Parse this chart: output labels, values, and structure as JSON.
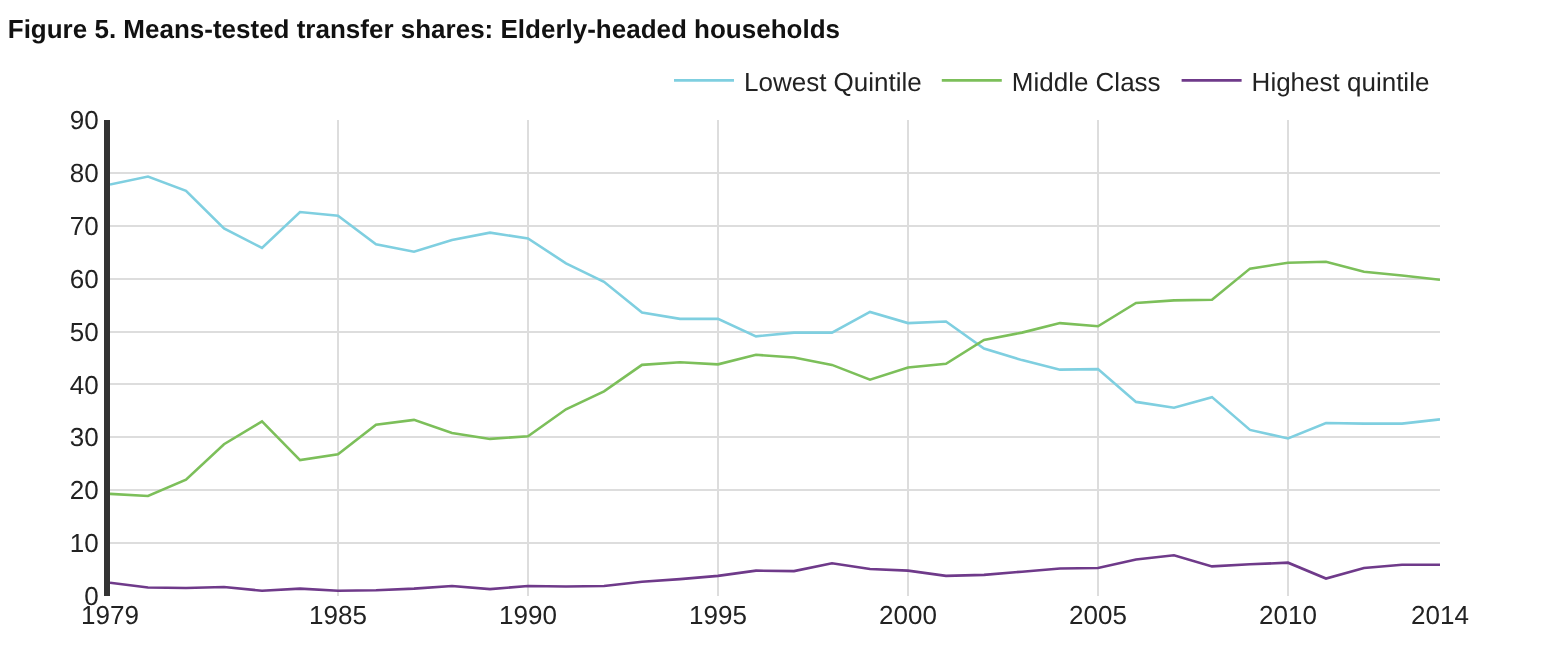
{
  "chart_data": {
    "type": "line",
    "title": "Figure 5. Means-tested transfer shares: Elderly-headed households",
    "x": [
      1979,
      1980,
      1981,
      1982,
      1983,
      1984,
      1985,
      1986,
      1987,
      1988,
      1989,
      1990,
      1991,
      1992,
      1993,
      1994,
      1995,
      1996,
      1997,
      1998,
      1999,
      2000,
      2001,
      2002,
      2003,
      2004,
      2005,
      2006,
      2007,
      2008,
      2009,
      2010,
      2011,
      2012,
      2013,
      2014
    ],
    "series": [
      {
        "name": "Lowest Quintile",
        "color": "#7fcfe0",
        "values": [
          77.8,
          79.3,
          76.6,
          69.5,
          65.8,
          72.6,
          71.9,
          66.5,
          65.1,
          67.3,
          68.7,
          67.6,
          62.9,
          59.4,
          53.6,
          52.4,
          52.4,
          49.1,
          49.8,
          49.8,
          53.7,
          51.6,
          51.9,
          46.8,
          44.6,
          42.8,
          42.9,
          36.7,
          35.6,
          37.6,
          31.4,
          29.8,
          32.7,
          32.6,
          32.6,
          33.4
        ]
      },
      {
        "name": "Middle Class",
        "color": "#7cbf5a",
        "values": [
          19.3,
          18.9,
          22.0,
          28.7,
          33.0,
          25.7,
          26.8,
          32.4,
          33.3,
          30.8,
          29.7,
          30.2,
          35.3,
          38.7,
          43.7,
          44.2,
          43.8,
          45.6,
          45.1,
          43.7,
          40.9,
          43.2,
          43.9,
          48.4,
          49.8,
          51.6,
          51.0,
          55.4,
          55.9,
          56.0,
          61.9,
          63.0,
          63.2,
          61.3,
          60.6,
          59.8
        ]
      },
      {
        "name": "Highest quintile",
        "color": "#6f3a8a",
        "values": [
          2.5,
          1.6,
          1.5,
          1.7,
          1.0,
          1.4,
          1.0,
          1.1,
          1.4,
          1.9,
          1.3,
          1.9,
          1.8,
          1.9,
          2.7,
          3.2,
          3.8,
          4.8,
          4.7,
          6.2,
          5.1,
          4.8,
          3.8,
          4.0,
          4.6,
          5.2,
          5.3,
          6.9,
          7.7,
          5.6,
          6.0,
          6.3,
          3.3,
          5.3,
          5.9,
          5.9
        ]
      }
    ],
    "xlim": [
      1979,
      2014
    ],
    "xticks": [
      1979,
      1985,
      1990,
      1995,
      2000,
      2005,
      2010,
      2014
    ],
    "ylim": [
      0,
      90
    ],
    "yticks": [
      0,
      10,
      20,
      30,
      40,
      50,
      60,
      70,
      80,
      90
    ],
    "grid": true,
    "legend": "top right",
    "marker": "none",
    "line_style": "solid"
  }
}
